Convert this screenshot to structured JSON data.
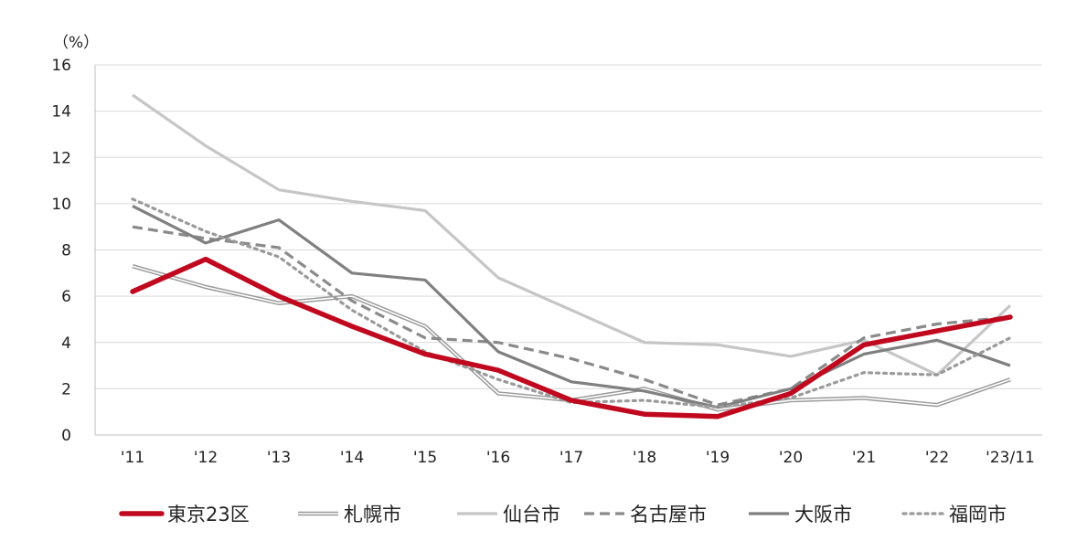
{
  "chart_data": {
    "type": "line",
    "unit_label": "（%）",
    "categories": [
      "'11",
      "'12",
      "'13",
      "'14",
      "'15",
      "'16",
      "'17",
      "'18",
      "'19",
      "'20",
      "'21",
      "'22",
      "'23/11"
    ],
    "ylim": [
      0,
      16
    ],
    "yticks": [
      0,
      2,
      4,
      6,
      8,
      10,
      12,
      14,
      16
    ],
    "grid": true,
    "legend_position": "bottom",
    "series": [
      {
        "name": "札幌市",
        "color": "#9a9a9a",
        "style": "double",
        "values": [
          7.3,
          6.4,
          5.7,
          6.0,
          4.7,
          1.8,
          1.5,
          2.0,
          1.1,
          1.5,
          1.6,
          1.3,
          2.4
        ]
      },
      {
        "name": "仙台市",
        "color": "#c6c6c6",
        "style": "solid-light",
        "values": [
          14.7,
          12.5,
          10.6,
          10.1,
          9.7,
          6.8,
          5.4,
          4.0,
          3.9,
          3.4,
          4.1,
          2.6,
          5.6
        ]
      },
      {
        "name": "名古屋市",
        "color": "#8a8a8a",
        "style": "dashed",
        "values": [
          9.0,
          8.5,
          8.1,
          5.8,
          4.2,
          4.0,
          3.3,
          2.4,
          1.3,
          2.0,
          4.2,
          4.8,
          5.1
        ]
      },
      {
        "name": "大阪市",
        "color": "#808080",
        "style": "solid-dark",
        "values": [
          9.9,
          8.3,
          9.3,
          7.0,
          6.7,
          3.6,
          2.3,
          1.9,
          1.2,
          2.0,
          3.5,
          4.1,
          3.0
        ]
      },
      {
        "name": "福岡市",
        "color": "#9a9a9a",
        "style": "dotted",
        "values": [
          10.2,
          8.8,
          7.7,
          5.4,
          3.6,
          2.4,
          1.4,
          1.5,
          1.2,
          1.6,
          2.7,
          2.6,
          4.2
        ]
      },
      {
        "name": "東京23区",
        "color": "#c0081e",
        "style": "thick",
        "values": [
          6.2,
          7.6,
          6.0,
          4.7,
          3.5,
          2.8,
          1.5,
          0.9,
          0.8,
          1.8,
          3.9,
          4.5,
          5.1
        ]
      }
    ],
    "legend": [
      "東京23区",
      "札幌市",
      "仙台市",
      "名古屋市",
      "大阪市",
      "福岡市"
    ]
  }
}
